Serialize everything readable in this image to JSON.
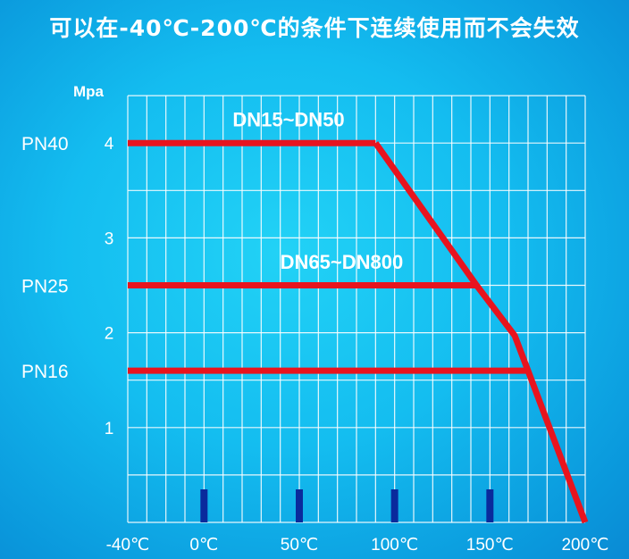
{
  "title": "可以在-40℃-200℃的条件下连续使用而不会失效",
  "chart_data": {
    "type": "line",
    "ylabel": "Mpa",
    "xlim": [
      -40,
      200
    ],
    "ylim": [
      0,
      4.5
    ],
    "grid": true,
    "x_ticks": [
      {
        "value": -40,
        "label": "-40℃"
      },
      {
        "value": 0,
        "label": "0℃"
      },
      {
        "value": 50,
        "label": "50℃"
      },
      {
        "value": 100,
        "label": "100℃"
      },
      {
        "value": 150,
        "label": "150℃"
      },
      {
        "value": 200,
        "label": "200℃"
      }
    ],
    "y_ticks": [
      {
        "value": 1,
        "label": "1"
      },
      {
        "value": 2,
        "label": "2"
      },
      {
        "value": 3,
        "label": "3"
      },
      {
        "value": 4,
        "label": "4"
      }
    ],
    "pressure_classes": [
      {
        "label": "PN40",
        "value": 4
      },
      {
        "label": "PN25",
        "value": 2.5
      },
      {
        "label": "PN16",
        "value": 1.6
      }
    ],
    "annotations": [
      {
        "text": "DN15~DN50",
        "x": 15,
        "y": 4.25
      },
      {
        "text": "DN65~DN800",
        "x": 40,
        "y": 2.75
      }
    ],
    "series": [
      {
        "points": [
          [
            -40,
            4
          ],
          [
            90,
            4
          ]
        ]
      },
      {
        "points": [
          [
            -40,
            2.5
          ],
          [
            143,
            2.5
          ]
        ]
      },
      {
        "points": [
          [
            -40,
            1.6
          ],
          [
            170,
            1.6
          ]
        ]
      },
      {
        "points": [
          [
            90,
            4
          ],
          [
            143,
            2.5
          ],
          [
            163,
            1.97
          ],
          [
            170,
            1.6
          ],
          [
            200,
            0
          ]
        ]
      }
    ],
    "markers_x": [
      0,
      50,
      100,
      150
    ],
    "colors": {
      "line": "#e8141e",
      "marker": "#0a2a9c",
      "grid": "#ffffff"
    }
  }
}
